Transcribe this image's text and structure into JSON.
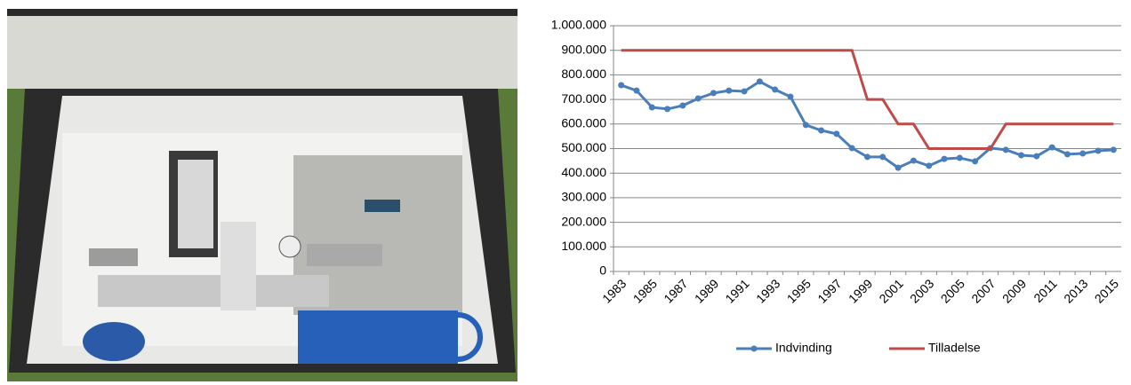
{
  "chart_data": {
    "type": "line",
    "categories": [
      "1983",
      null,
      "1985",
      null,
      "1987",
      null,
      "1989",
      null,
      "1991",
      null,
      "1993",
      null,
      "1995",
      null,
      "1997",
      null,
      "1999",
      null,
      "2001",
      null,
      "2003",
      null,
      "2005",
      null,
      "2007",
      null,
      "2009",
      null,
      "2011",
      null,
      "2013",
      null,
      "2015"
    ],
    "series": [
      {
        "name": "Indvinding",
        "color": "#4a7ebb",
        "marker": true,
        "values": [
          758000,
          736000,
          668000,
          661000,
          675000,
          704000,
          726000,
          736000,
          733000,
          773000,
          740000,
          711000,
          596000,
          574000,
          560000,
          502000,
          466000,
          466000,
          422000,
          451000,
          430000,
          458000,
          462000,
          448000,
          502000,
          495000,
          473000,
          469000,
          505000,
          477000,
          480000,
          491000,
          495000
        ]
      },
      {
        "name": "Tilladelse",
        "color": "#be4b48",
        "marker": false,
        "values": [
          900000,
          900000,
          900000,
          900000,
          900000,
          900000,
          900000,
          900000,
          900000,
          900000,
          900000,
          900000,
          900000,
          900000,
          900000,
          900000,
          700000,
          700000,
          600000,
          600000,
          500000,
          500000,
          500000,
          500000,
          500000,
          600000,
          600000,
          600000,
          600000,
          600000,
          600000,
          600000,
          600000
        ]
      }
    ],
    "ylim": [
      0,
      1000000
    ],
    "yticks": [
      0,
      {
        "value": 100000,
        "label": "100.000"
      },
      {
        "value": 200000,
        "label": "200.000"
      },
      {
        "value": 300000,
        "label": "300.000"
      },
      {
        "value": 400000,
        "label": "400.000"
      },
      {
        "value": 500000,
        "label": "500.000"
      },
      {
        "value": 600000,
        "label": "600.000"
      },
      {
        "value": 700000,
        "label": "700.000"
      },
      {
        "value": 800000,
        "label": "800.000"
      },
      {
        "value": 900000,
        "label": "900.000"
      },
      {
        "value": 1000000,
        "label": "1.000.000"
      }
    ],
    "grid": true,
    "legend": "bottom"
  }
}
